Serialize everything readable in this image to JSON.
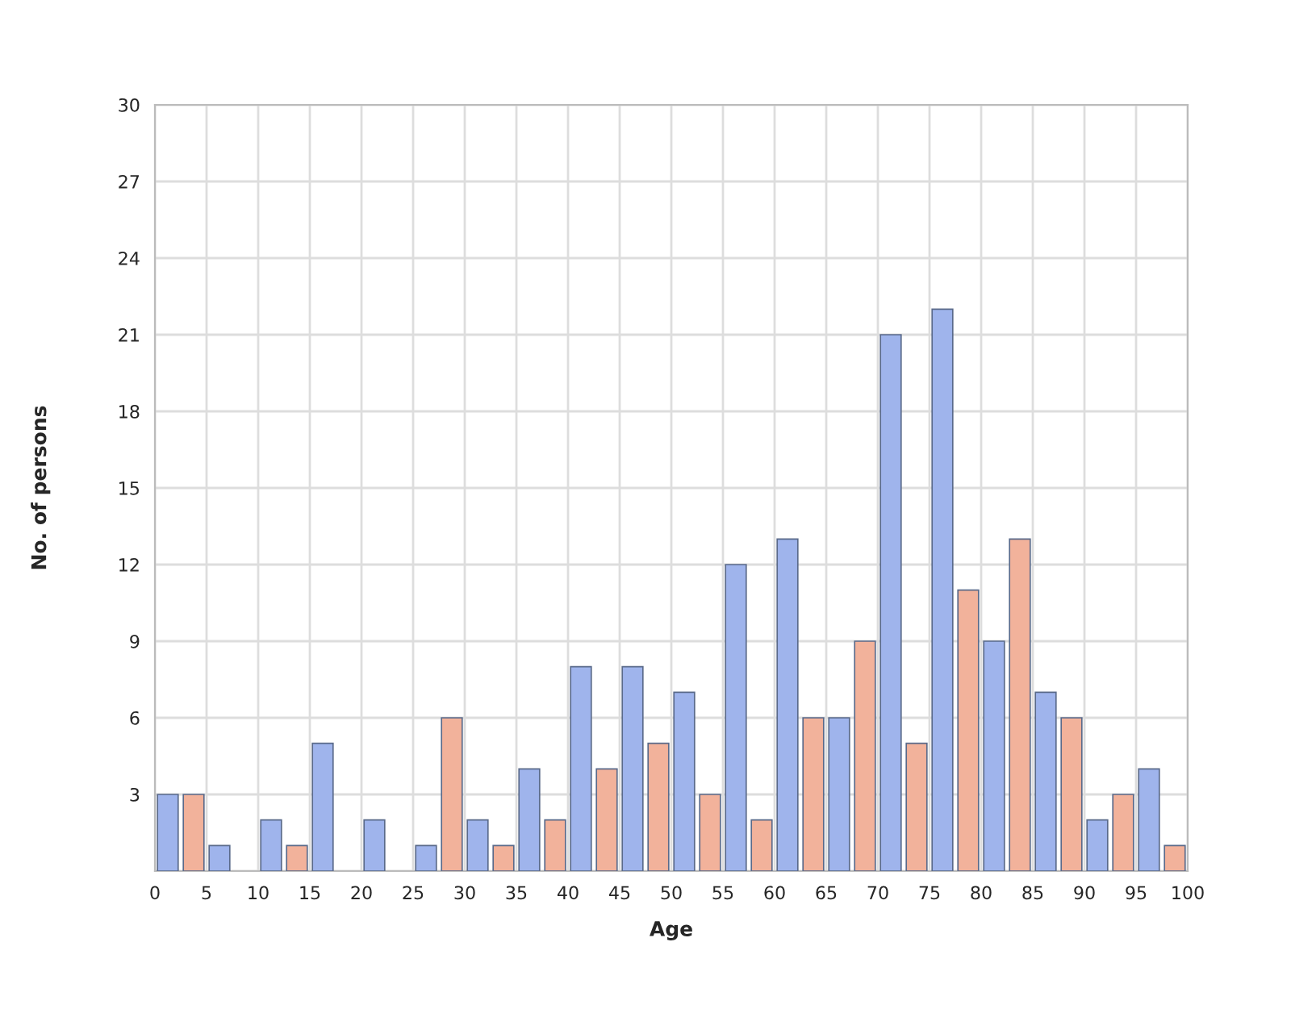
{
  "chart_data": {
    "type": "bar",
    "xlabel": "Age",
    "ylabel": "No. of persons",
    "x": [
      2.5,
      7.5,
      12.5,
      17.5,
      22.5,
      27.5,
      32.5,
      37.5,
      42.5,
      47.5,
      52.5,
      57.5,
      62.5,
      67.5,
      72.5,
      77.5,
      82.5,
      87.5,
      92.5,
      97.5
    ],
    "series": [
      {
        "color": "#9fb4ec",
        "values": [
          3,
          1,
          2,
          5,
          2,
          1,
          2,
          4,
          8,
          8,
          7,
          12,
          13,
          6,
          21,
          22,
          9,
          7,
          2,
          4
        ]
      },
      {
        "color": "#f2b29b",
        "values": [
          3,
          0,
          1,
          0,
          0,
          6,
          1,
          2,
          4,
          5,
          3,
          2,
          6,
          9,
          5,
          11,
          13,
          6,
          3,
          1
        ]
      }
    ],
    "xlim": [
      0,
      100
    ],
    "xticks": [
      0,
      5,
      10,
      15,
      20,
      25,
      30,
      35,
      40,
      45,
      50,
      55,
      60,
      65,
      70,
      75,
      80,
      85,
      90,
      95,
      100
    ],
    "ylim": [
      0,
      30
    ],
    "yticks": [
      {
        "value": 0,
        "label": null
      },
      3,
      6,
      9,
      12,
      15,
      18,
      21,
      24,
      27,
      30
    ],
    "grid": true
  }
}
